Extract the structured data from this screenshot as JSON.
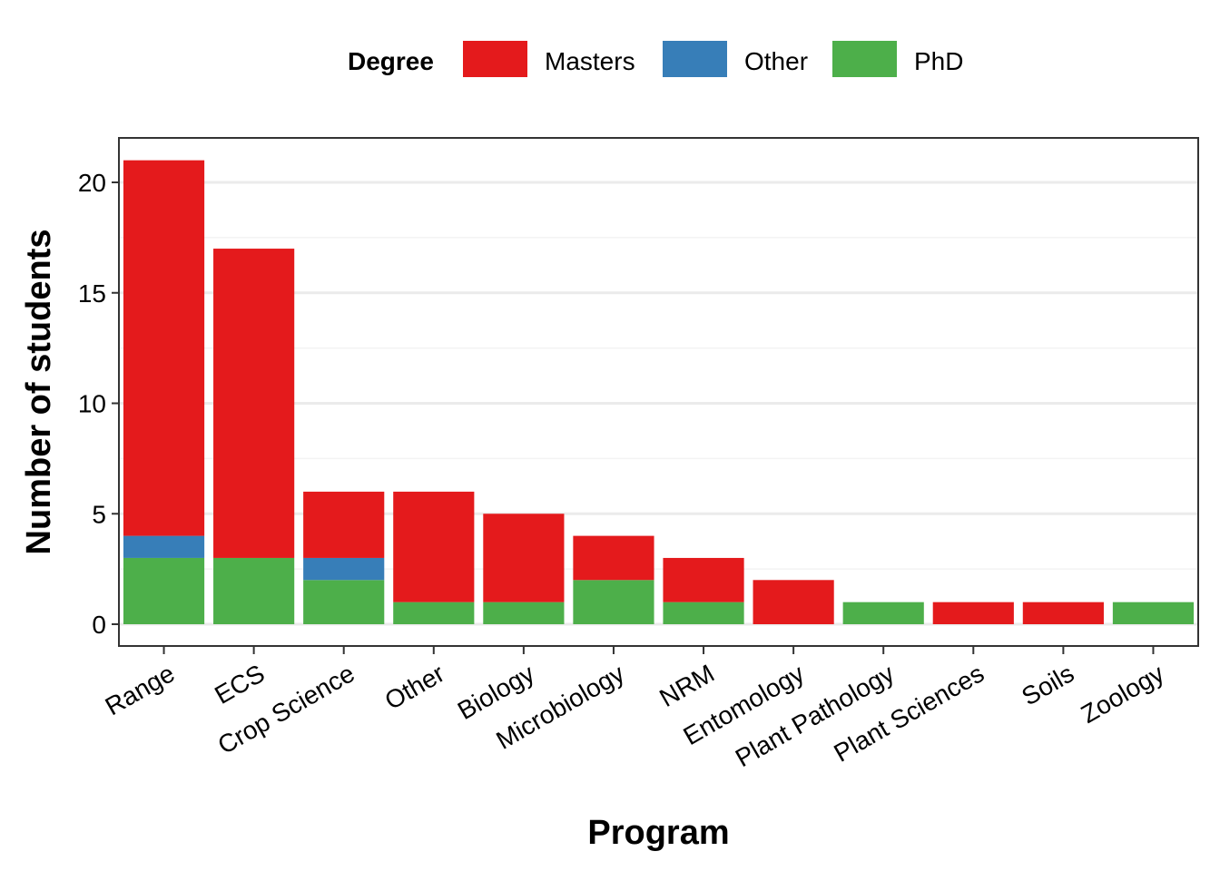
{
  "chart_data": {
    "type": "bar",
    "stacked": true,
    "title": "",
    "xlabel": "Program",
    "ylabel": "Number of students",
    "ylim": [
      0,
      22
    ],
    "yticks": [
      0,
      5,
      10,
      15,
      20
    ],
    "grid": true,
    "legend": {
      "title": "Degree",
      "position": "top",
      "entries": [
        "Masters",
        "Other",
        "PhD"
      ]
    },
    "categories": [
      "Range",
      "ECS",
      "Crop Science",
      "Other",
      "Biology",
      "Microbiology",
      "NRM",
      "Entomology",
      "Plant Pathology",
      "Plant Sciences",
      "Soils",
      "Zoology"
    ],
    "series": [
      {
        "name": "PhD",
        "color": "#4DAF4A",
        "values": [
          3,
          3,
          2,
          1,
          1,
          2,
          1,
          0,
          1,
          0,
          0,
          1
        ]
      },
      {
        "name": "Other",
        "color": "#377EB8",
        "values": [
          1,
          0,
          1,
          0,
          0,
          0,
          0,
          0,
          0,
          0,
          0,
          0
        ]
      },
      {
        "name": "Masters",
        "color": "#E41A1C",
        "values": [
          17,
          14,
          3,
          5,
          4,
          2,
          2,
          2,
          0,
          1,
          1,
          0
        ]
      }
    ]
  }
}
